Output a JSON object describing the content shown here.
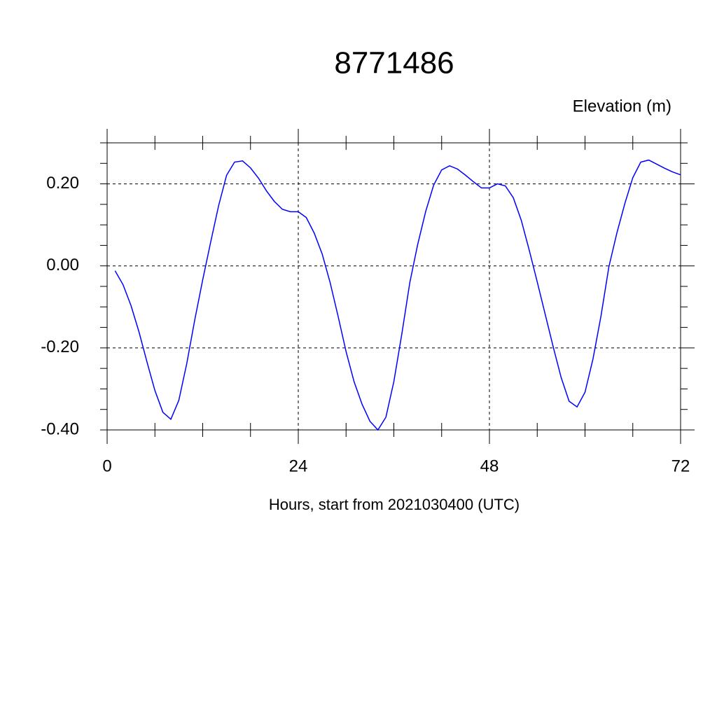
{
  "chart_data": {
    "type": "line",
    "title": "8771486",
    "ylabel": "Elevation (m)",
    "xlabel": "Hours, start from 2021030400 (UTC)",
    "x": [
      1,
      2,
      3,
      4,
      5,
      6,
      7,
      8,
      9,
      10,
      11,
      12,
      13,
      14,
      15,
      16,
      17,
      18,
      19,
      20,
      21,
      22,
      23,
      24,
      25,
      26,
      27,
      28,
      29,
      30,
      31,
      32,
      33,
      34,
      35,
      36,
      37,
      38,
      39,
      40,
      41,
      42,
      43,
      44,
      45,
      46,
      47,
      48,
      49,
      50,
      51,
      52,
      53,
      54,
      55,
      56,
      57,
      58,
      59,
      60,
      61,
      62,
      63,
      64,
      65,
      66,
      67,
      68,
      69,
      70,
      71,
      72
    ],
    "series": [
      {
        "color": "#0000ff",
        "values": [
          -0.012,
          -0.046,
          -0.097,
          -0.161,
          -0.234,
          -0.304,
          -0.357,
          -0.374,
          -0.328,
          -0.238,
          -0.132,
          -0.034,
          0.058,
          0.147,
          0.221,
          0.253,
          0.256,
          0.239,
          0.214,
          0.183,
          0.157,
          0.138,
          0.132,
          0.132,
          0.118,
          0.08,
          0.029,
          -0.041,
          -0.123,
          -0.209,
          -0.282,
          -0.337,
          -0.379,
          -0.4,
          -0.369,
          -0.282,
          -0.166,
          -0.041,
          0.053,
          0.133,
          0.197,
          0.234,
          0.244,
          0.236,
          0.221,
          0.205,
          0.19,
          0.19,
          0.2,
          0.195,
          0.166,
          0.111,
          0.038,
          -0.039,
          -0.118,
          -0.197,
          -0.272,
          -0.33,
          -0.344,
          -0.308,
          -0.227,
          -0.123,
          -0.002,
          0.08,
          0.152,
          0.215,
          0.253,
          0.258,
          0.248,
          0.238,
          0.229,
          0.222
        ]
      }
    ],
    "xlim": [
      0,
      72
    ],
    "xticks": [
      0,
      24,
      48,
      72
    ],
    "xminorticks": [
      6,
      12,
      18,
      30,
      36,
      42,
      54,
      60,
      66
    ],
    "ylim": [
      -0.4,
      0.3
    ],
    "yticks": [
      {
        "value": -0.4,
        "label": "-0.40"
      },
      {
        "value": -0.2,
        "label": "-0.20"
      },
      {
        "value": 0,
        "label": "0.00"
      },
      {
        "value": 0.2,
        "label": "0.20"
      }
    ],
    "yminorticks": [
      -0.35,
      -0.3,
      -0.25,
      -0.15,
      -0.1,
      -0.05,
      0.05,
      0.1,
      0.15,
      0.25,
      0.3
    ],
    "grid": true
  }
}
